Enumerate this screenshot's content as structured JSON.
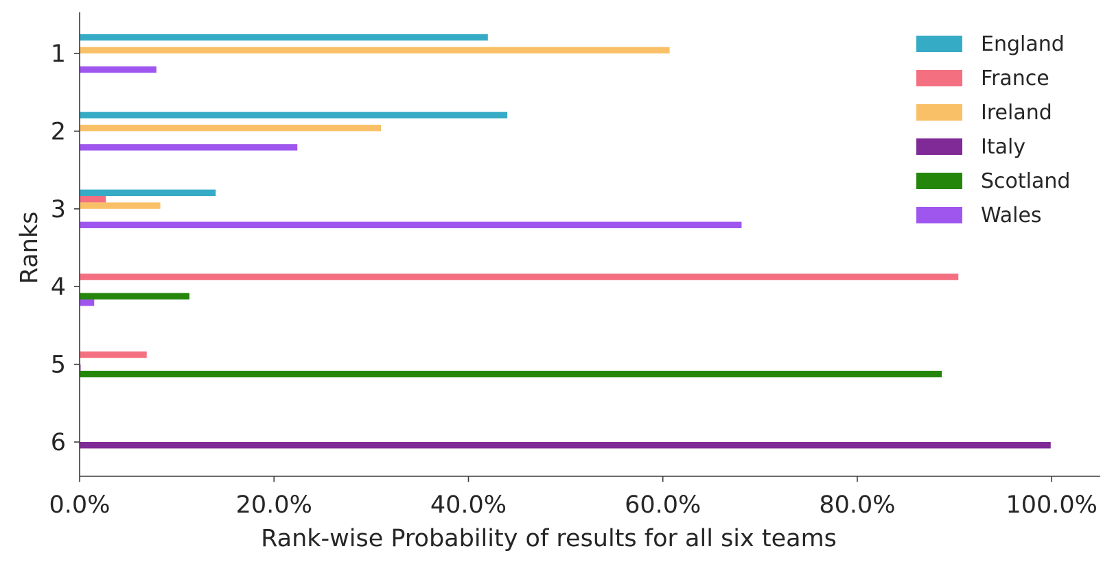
{
  "chart_data": {
    "type": "bar",
    "orientation": "horizontal",
    "title": "",
    "xlabel": "Rank-wise Probability of results for all six teams",
    "ylabel": "Ranks",
    "categories": [
      "1",
      "2",
      "3",
      "4",
      "5",
      "6"
    ],
    "xlim": [
      0,
      1.05
    ],
    "x_ticks": [
      0,
      0.2,
      0.4,
      0.6,
      0.8,
      1.0
    ],
    "x_tick_labels": [
      "0.0%",
      "20.0%",
      "40.0%",
      "60.0%",
      "80.0%",
      "100.0%"
    ],
    "grid": false,
    "legend_position": "top-right",
    "series": [
      {
        "name": "England",
        "color": "#36abc6",
        "values": [
          0.42,
          0.44,
          0.14,
          0.0,
          0.0,
          0.0
        ]
      },
      {
        "name": "France",
        "color": "#f47081",
        "values": [
          0.0,
          0.0,
          0.027,
          0.904,
          0.069,
          0.0
        ]
      },
      {
        "name": "Ireland",
        "color": "#f9c068",
        "values": [
          0.607,
          0.31,
          0.083,
          0.0,
          0.0,
          0.0
        ]
      },
      {
        "name": "Italy",
        "color": "#7f2a96",
        "values": [
          0.0,
          0.0,
          0.0,
          0.0,
          0.001,
          0.999
        ]
      },
      {
        "name": "Scotland",
        "color": "#24860b",
        "values": [
          0.0,
          0.0,
          0.0,
          0.113,
          0.887,
          0.0
        ]
      },
      {
        "name": "Wales",
        "color": "#9f56ef",
        "values": [
          0.079,
          0.224,
          0.681,
          0.015,
          0.0,
          0.0
        ]
      }
    ]
  }
}
